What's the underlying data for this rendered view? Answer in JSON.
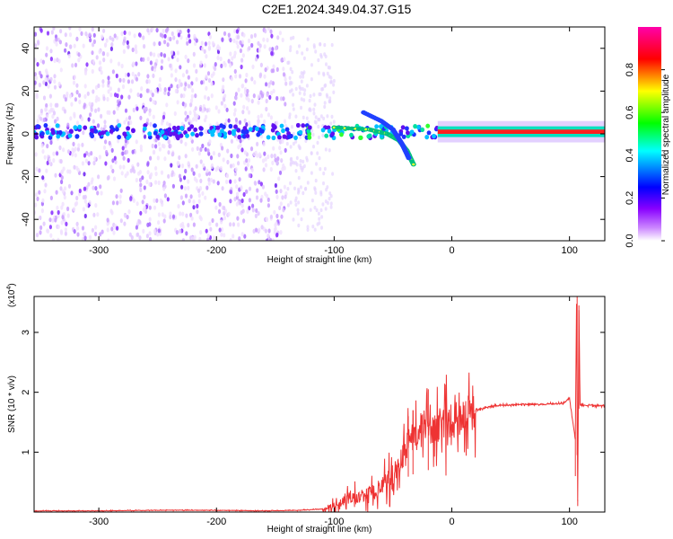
{
  "title": "C2E1.2024.349.04.37.G15",
  "colors": {
    "signal": "#ee3333",
    "axis": "#000000"
  },
  "chart_data": [
    {
      "type": "heatmap",
      "xlabel": "Height of straight line (km)",
      "ylabel": "Frequency (Hz)",
      "xlim": [
        -355,
        130
      ],
      "ylim": [
        -50,
        50
      ],
      "xticks": [
        -300,
        -200,
        -100,
        0,
        100
      ],
      "yticks": [
        -40,
        -20,
        0,
        20,
        40
      ],
      "colorbar": {
        "label": "Normalized spectral amplitude",
        "range": [
          0,
          1
        ],
        "ticks": [
          "0.0",
          "0.2",
          "0.4",
          "0.6",
          "0.8"
        ],
        "colormap": [
          "#ffffff",
          "#8800ff",
          "#0000ff",
          "#00ffff",
          "#00ff00",
          "#ffff00",
          "#ff0000",
          "#ff00aa"
        ]
      },
      "features": {
        "main_band_frequency_hz": 1,
        "noise_region_until_km": -140,
        "strong_band_from_km": -12,
        "descending_tracks": [
          {
            "x": [
              -100,
              -70,
              -55,
              -45,
              -38,
              -32
            ],
            "y": [
              3,
              2,
              0,
              -3,
              -8,
              -15
            ]
          },
          {
            "x": [
              -75,
              -60,
              -50,
              -42,
              -36
            ],
            "y": [
              10,
              6,
              2,
              -5,
              -12
            ]
          }
        ]
      }
    },
    {
      "type": "line",
      "xlabel": "Height of straight line (km)",
      "ylabel": "SNR (10 * v/v)",
      "y_multiplier_label": "(x10",
      "y_multiplier_exponent": "4",
      "xlim": [
        -355,
        130
      ],
      "ylim": [
        0,
        3.6
      ],
      "xticks": [
        -300,
        -200,
        -100,
        0,
        100
      ],
      "yticks": [
        1,
        2,
        3
      ],
      "series": [
        {
          "x": [
            -355,
            -300,
            -250,
            -200,
            -160,
            -130,
            -110,
            -100,
            -90,
            -80,
            -70,
            -60,
            -50,
            -45,
            -40,
            -35,
            -30,
            -25,
            -20,
            -15,
            -10,
            -5,
            0,
            5,
            10,
            20,
            30,
            40,
            60,
            80,
            95,
            100,
            105,
            106,
            107,
            108,
            109,
            110,
            115,
            130
          ],
          "y": [
            0.02,
            0.02,
            0.03,
            0.03,
            0.02,
            0.03,
            0.05,
            0.1,
            0.2,
            0.25,
            0.3,
            0.4,
            0.55,
            0.8,
            1.0,
            1.3,
            1.2,
            1.55,
            1.4,
            1.35,
            1.4,
            1.45,
            1.5,
            1.55,
            1.6,
            1.7,
            1.75,
            1.78,
            1.8,
            1.8,
            1.82,
            1.9,
            1.2,
            3.6,
            0.2,
            3.45,
            1.8,
            1.78,
            1.78,
            1.78
          ]
        }
      ],
      "spikes": [
        {
          "x": -20,
          "y": 2.05
        },
        {
          "x": -33,
          "y": 1.7
        },
        {
          "x": -37,
          "y": 1.6
        },
        {
          "x": 105,
          "y": 1.25
        },
        {
          "x": 106.5,
          "y": 3.6
        },
        {
          "x": 107,
          "y": 0.2
        },
        {
          "x": 108,
          "y": 3.45
        }
      ]
    }
  ]
}
